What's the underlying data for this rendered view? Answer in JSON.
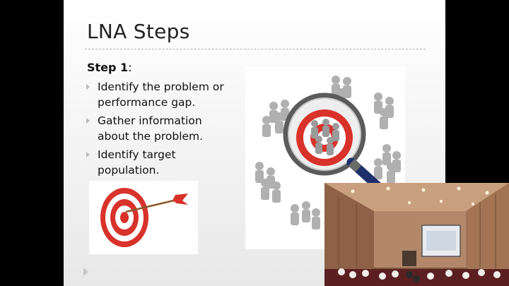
{
  "slide": {
    "title": "LNA Steps",
    "step_label": "Step 1",
    "step_suffix": ":",
    "bullets": [
      "Identify the problem or performance gap.",
      "Gather information about the problem.",
      "Identify target population."
    ]
  },
  "images": {
    "magnifier": "magnifying-glass-over-crowd-target",
    "target": "target-with-arrow"
  },
  "video": {
    "scene": "lecture-hall-camera-feed"
  },
  "colors": {
    "accent_red": "#d8322a",
    "figure_gray": "#9a9a9a",
    "slide_bg": "#f3f3f3"
  }
}
